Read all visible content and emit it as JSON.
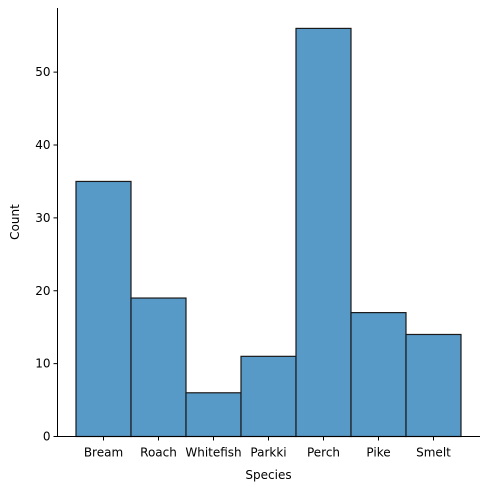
{
  "chart_data": {
    "type": "bar",
    "categories": [
      "Bream",
      "Roach",
      "Whitefish",
      "Parkki",
      "Perch",
      "Pike",
      "Smelt"
    ],
    "values": [
      35,
      19,
      6,
      11,
      56,
      17,
      14
    ],
    "xlabel": "Species",
    "ylabel": "Count",
    "ylim": [
      0,
      58.8
    ],
    "yticks": [
      0,
      10,
      20,
      30,
      40,
      50
    ],
    "grid": false,
    "legend": "none",
    "bar_color": "#5799c7",
    "edge_color": "#1a1a1a",
    "spines": [
      "left",
      "bottom"
    ]
  }
}
